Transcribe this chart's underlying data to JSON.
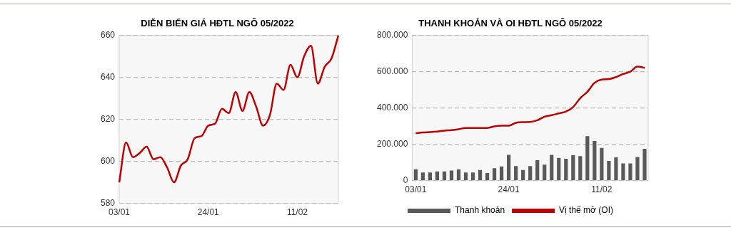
{
  "chart_data": [
    {
      "type": "line",
      "title": "DIỄN BIẾN GIÁ HĐTL NGÔ 05/2022",
      "categories": [
        "03/01",
        null,
        null,
        null,
        null,
        null,
        null,
        null,
        null,
        null,
        null,
        null,
        null,
        "24/01",
        null,
        null,
        null,
        null,
        null,
        null,
        null,
        null,
        null,
        null,
        null,
        null,
        "11/02",
        null,
        null,
        null,
        null,
        null,
        null
      ],
      "series": [
        {
          "color": "#c00000",
          "values": [
            590,
            609,
            602,
            604,
            607,
            601,
            602,
            597,
            590,
            598,
            601,
            611,
            612,
            617,
            618,
            625,
            623,
            633,
            624,
            633,
            626,
            617,
            622,
            637,
            634,
            646,
            640,
            650,
            655,
            637,
            645,
            649,
            660
          ]
        }
      ],
      "ylim": [
        580,
        660
      ],
      "yticks": [
        580,
        600,
        620,
        640,
        660
      ],
      "grid": "y"
    },
    {
      "type": "bar",
      "title": "THANH KHOẢN VÀ OI HĐTL NGÔ 05/2022",
      "categories": [
        "03/01",
        null,
        null,
        null,
        null,
        null,
        null,
        null,
        null,
        null,
        null,
        null,
        null,
        "24/01",
        null,
        null,
        null,
        null,
        null,
        null,
        null,
        null,
        null,
        null,
        null,
        null,
        "11/02",
        null,
        null,
        null,
        null,
        null,
        null
      ],
      "series": [
        {
          "type": "bar",
          "name": "Thanh khoản",
          "color": "#595959",
          "values": [
            62000,
            45000,
            45000,
            50000,
            50000,
            55000,
            62000,
            45000,
            45000,
            58000,
            42000,
            68000,
            78000,
            142000,
            80000,
            58000,
            80000,
            112000,
            88000,
            142000,
            125000,
            120000,
            140000,
            135000,
            245000,
            218000,
            180000,
            108000,
            128000,
            95000,
            95000,
            130000,
            175000
          ]
        },
        {
          "type": "line",
          "name": "Vị thế mở (OI)",
          "color": "#c00000",
          "values": [
            260000,
            265000,
            267000,
            270000,
            275000,
            278000,
            283000,
            290000,
            290000,
            290000,
            290000,
            298000,
            302000,
            302000,
            318000,
            322000,
            323000,
            332000,
            352000,
            360000,
            370000,
            380000,
            405000,
            454000,
            489000,
            538000,
            556000,
            559000,
            570000,
            587000,
            600000,
            628000,
            621000
          ]
        }
      ],
      "ylim": [
        0,
        800000
      ],
      "yticks": [
        0,
        {
          "value": 200000,
          "label": "200.000"
        },
        {
          "value": 400000,
          "label": "400.000"
        },
        {
          "value": 600000,
          "label": "600.000"
        },
        {
          "value": 800000,
          "label": "800.000"
        }
      ],
      "grid": "y",
      "legend": "bottom"
    }
  ]
}
